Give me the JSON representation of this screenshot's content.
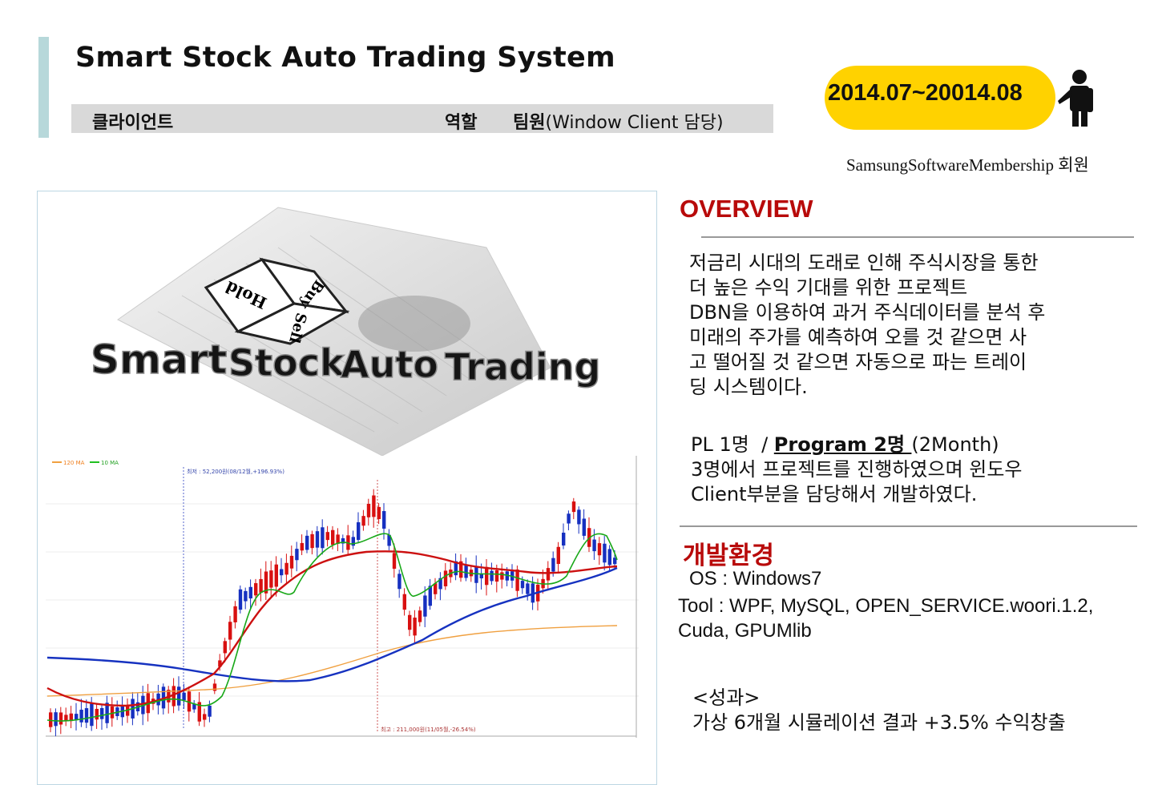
{
  "header": {
    "title": "Smart Stock Auto Trading System",
    "client_label": "클라이언트",
    "role_label": "역할",
    "member_bold": "팀원",
    "member_detail": "(Window Client 담당)",
    "date_range": "2014.07~20014.08",
    "membership": "SamsungSoftwareMembership 회원"
  },
  "logo": {
    "words": [
      "Smart",
      "Stock",
      "Auto",
      "Trading"
    ],
    "cube_faces": [
      "Hold",
      "Buy",
      "Sell"
    ]
  },
  "chart": {
    "legend": [
      "120 MA",
      "10 MA"
    ],
    "max_label": "최저 : 52,200원(08/12월,+196.93%)",
    "min_label": "최고 : 211,000원(11/05월,-26.54%)"
  },
  "overview": {
    "heading": "OVERVIEW",
    "description_lines": [
      "저금리 시대의 도래로 인해 주식시장을 통한",
      "더 높은 수익 기대를 위한 프로젝트",
      "DBN을 이용하여 과거 주식데이터를 분석 후",
      "미래의 주가를 예측하여 오를 것 같으면 사",
      "고 떨어질 것 같으면 자동으로 파는 트레이",
      "딩 시스템이다."
    ],
    "team_pl": "PL 1명  / ",
    "team_program": "Program 2명 ",
    "team_duration": "(2Month)",
    "team_lines": [
      "3명에서 프로젝트를 진행하였으며 윈도우",
      "Client부분을 담당해서 개발하였다."
    ]
  },
  "environment": {
    "heading": "개발환경",
    "os": "OS : Windows7",
    "tool": "Tool : WPF, MySQL, OPEN_SERVICE.woori.1.2, Cuda, GPUMlib"
  },
  "result": {
    "heading": "<성과>",
    "text": "가상 6개월 시뮬레이션 결과 +3.5% 수익창출"
  },
  "colors": {
    "accent": "#b7d8da",
    "pill": "#ffd200",
    "heading_red": "#b80a0a",
    "candle_up": "#d81010",
    "candle_down": "#1630c0"
  }
}
